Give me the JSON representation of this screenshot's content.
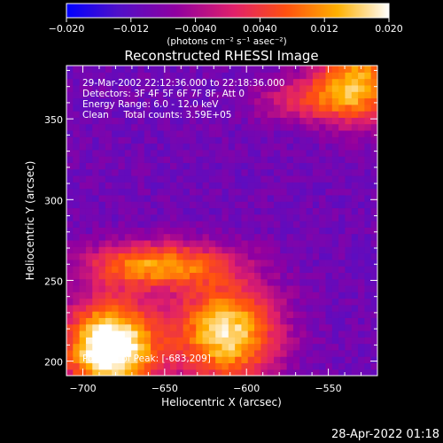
{
  "chart_data": {
    "type": "heatmap",
    "title": "Reconstructed RHESSI Image",
    "xlabel": "Heliocentric X (arcsec)",
    "ylabel": "Heliocentric Y (arcsec)",
    "xlim": [
      -710,
      -520
    ],
    "ylim": [
      191,
      383
    ],
    "x_ticks": [
      -700,
      -650,
      -600,
      -550
    ],
    "y_ticks": [
      200,
      250,
      300,
      350
    ],
    "colorbar": {
      "range": [
        -0.02,
        0.02
      ],
      "ticks": [
        "-0.020",
        "-0.012",
        "-0.0040",
        "0.0040",
        "0.012",
        "0.020"
      ],
      "label": "(photons cm⁻² s⁻¹ asec⁻²)",
      "colors": [
        "#0000ff",
        "#5010c8",
        "#9000a0",
        "#e0206a",
        "#ff5010",
        "#ffb000",
        "#ffffff"
      ]
    },
    "annotations": [
      "29-Mar-2002 22:12:36.000 to 22:18:36.000",
      "Detectors: 3F 4F 5F 6F 7F 8F, Att 0",
      "Energy Range: 6.0 - 12.0 keV",
      "Clean     Total counts: 3.59E+05"
    ],
    "peak_label": "Position of Peak: [-683,209]",
    "peak": [
      -683,
      209
    ],
    "sources": [
      {
        "x": -683,
        "y": 209,
        "amp": 0.036,
        "sx": 20,
        "sy": 20
      },
      {
        "x": -612,
        "y": 218,
        "amp": 0.028,
        "sx": 22,
        "sy": 22
      },
      {
        "x": -655,
        "y": 260,
        "amp": 0.022,
        "sx": 30,
        "sy": 10
      },
      {
        "x": -532,
        "y": 375,
        "amp": 0.022,
        "sx": 18,
        "sy": 18
      },
      {
        "x": -560,
        "y": 362,
        "amp": 0.012,
        "sx": 24,
        "sy": 10
      }
    ],
    "background": -0.01,
    "noise": 0.0022
  },
  "footer": {
    "timestamp": "28-Apr-2022 01:18"
  }
}
